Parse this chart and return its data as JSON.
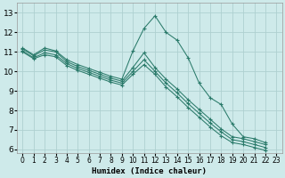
{
  "xlabel": "Humidex (Indice chaleur)",
  "xlim": [
    -0.5,
    23.5
  ],
  "ylim": [
    5.8,
    13.5
  ],
  "yticks": [
    6,
    7,
    8,
    9,
    10,
    11,
    12,
    13
  ],
  "xticks": [
    0,
    1,
    2,
    3,
    4,
    5,
    6,
    7,
    8,
    9,
    10,
    11,
    12,
    13,
    14,
    15,
    16,
    17,
    18,
    19,
    20,
    21,
    22,
    23
  ],
  "bg_color": "#ceeaea",
  "grid_color": "#aed0d0",
  "line_color": "#2a7a6a",
  "lines": [
    {
      "x": [
        0,
        1,
        2,
        3,
        4,
        5,
        6,
        7,
        8,
        9,
        10,
        11,
        12,
        13,
        14,
        15,
        16,
        17,
        18,
        19,
        20,
        21,
        22
      ],
      "y": [
        11.2,
        10.85,
        11.2,
        11.05,
        10.6,
        10.35,
        10.15,
        9.95,
        9.75,
        9.6,
        11.05,
        12.2,
        12.85,
        12.0,
        11.6,
        10.7,
        9.4,
        8.65,
        8.3,
        7.3,
        6.65,
        6.55,
        6.35
      ]
    },
    {
      "x": [
        0,
        1,
        2,
        3,
        4,
        5,
        6,
        7,
        8,
        9,
        10,
        11,
        12,
        13,
        14,
        15,
        16,
        17,
        18,
        19,
        20,
        21,
        22
      ],
      "y": [
        11.15,
        10.8,
        11.1,
        11.0,
        10.5,
        10.25,
        10.05,
        9.85,
        9.65,
        9.5,
        10.2,
        10.95,
        10.2,
        9.6,
        9.1,
        8.55,
        8.05,
        7.55,
        7.05,
        6.65,
        6.55,
        6.4,
        6.25
      ]
    },
    {
      "x": [
        0,
        1,
        2,
        3,
        4,
        5,
        6,
        7,
        8,
        9,
        10,
        11,
        12,
        13,
        14,
        15,
        16,
        17,
        18,
        19,
        20,
        21,
        22
      ],
      "y": [
        11.05,
        10.7,
        10.95,
        10.85,
        10.4,
        10.15,
        9.95,
        9.75,
        9.55,
        9.4,
        10.0,
        10.6,
        10.0,
        9.4,
        8.9,
        8.35,
        7.85,
        7.35,
        6.9,
        6.5,
        6.4,
        6.25,
        6.1
      ]
    },
    {
      "x": [
        0,
        1,
        2,
        3,
        4,
        5,
        6,
        7,
        8,
        9,
        10,
        11,
        12,
        13,
        14,
        15,
        16,
        17,
        18,
        19,
        20,
        21,
        22
      ],
      "y": [
        11.0,
        10.65,
        10.85,
        10.75,
        10.3,
        10.05,
        9.85,
        9.65,
        9.45,
        9.3,
        9.85,
        10.35,
        9.85,
        9.2,
        8.7,
        8.15,
        7.65,
        7.15,
        6.7,
        6.35,
        6.25,
        6.1,
        5.95
      ]
    }
  ],
  "xlabel_fontsize": 6.5,
  "tick_fontsize_x": 5.5,
  "tick_fontsize_y": 6.5
}
